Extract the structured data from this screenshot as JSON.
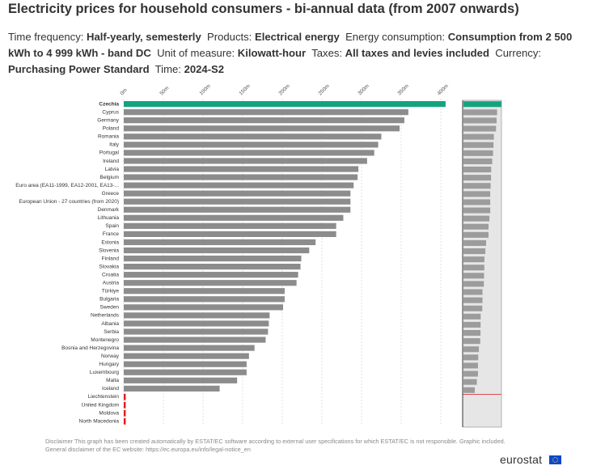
{
  "header": {
    "title": "Electricity prices for household consumers - bi-annual data (from 2007 onwards)",
    "filters": [
      {
        "label": "Time frequency:",
        "value": "Half-yearly, semesterly"
      },
      {
        "label": "Products:",
        "value": "Electrical energy"
      },
      {
        "label": "Energy consumption:",
        "value": "Consumption from 2 500 kWh to 4 999 kWh - band DC"
      },
      {
        "label": "Unit of measure:",
        "value": "Kilowatt-hour"
      },
      {
        "label": "Taxes:",
        "value": "All taxes and levies included"
      },
      {
        "label": "Currency:",
        "value": "Purchasing Power Standard"
      },
      {
        "label": "Time:",
        "value": "2024-S2"
      }
    ]
  },
  "colors": {
    "bar": "#8c8c8c",
    "highlight": "#14a37f",
    "missing": "#e0191f",
    "grid": "#cccccc",
    "overview_bg": "#e6e6e6",
    "overview_bar": "#9c9c9c"
  },
  "chart_data": {
    "type": "bar",
    "orientation": "horizontal",
    "x_ticks": [
      "0m",
      "50m",
      "100m",
      "150m",
      "200m",
      "250m",
      "300m",
      "350m",
      "400m"
    ],
    "xlim": [
      0,
      400
    ],
    "categories": [
      "Czechia",
      "Cyprus",
      "Germany",
      "Poland",
      "Romania",
      "Italy",
      "Portugal",
      "Ireland",
      "Latvia",
      "Belgium",
      "Euro area (EA11-1999, EA12-2001, EA13-...",
      "Greece",
      "European Union - 27 countries (from 2020)",
      "Denmark",
      "Lithuania",
      "Spain",
      "France",
      "Estonia",
      "Slovenia",
      "Finland",
      "Slovakia",
      "Croatia",
      "Austria",
      "Türkiye",
      "Bulgaria",
      "Sweden",
      "Netherlands",
      "Albania",
      "Serbia",
      "Montenegro",
      "Bosnia and Herzegovina",
      "Norway",
      "Hungary",
      "Luxembourg",
      "Malta",
      "Iceland",
      "Liechtenstein",
      "United Kingdom",
      "Moldova",
      "North Macedonia"
    ],
    "values": [
      406,
      359,
      354,
      348,
      325,
      321,
      316,
      307,
      296,
      295,
      290,
      286,
      286,
      286,
      277,
      268,
      268,
      242,
      234,
      224,
      223,
      220,
      218,
      203,
      203,
      201,
      184,
      183,
      182,
      179,
      165,
      158,
      155,
      155,
      143,
      121,
      null,
      null,
      null,
      null
    ],
    "highlight": "Czechia"
  },
  "footer": {
    "disclaimer_line1": "Disclaimer This graph has been created automatically by ESTAT/EC software according to external user specifications for which ESTAT/EC is not responsible. Graphic included.",
    "disclaimer_line2": "General disclaimer of the EC website: https://ec.europa.eu/info/legal-notice_en",
    "logo": "eurostat"
  }
}
